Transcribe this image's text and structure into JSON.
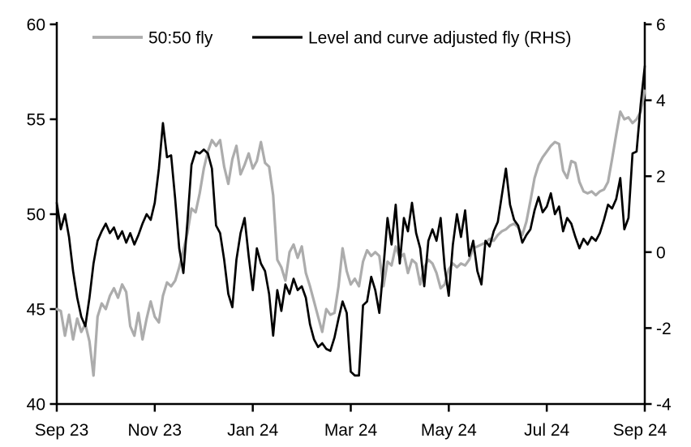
{
  "legend": {
    "items": [
      {
        "label": "50:50 fly",
        "color": "#acacac"
      },
      {
        "label": "Level and curve adjusted fly (RHS)",
        "color": "#000000"
      }
    ]
  },
  "chart_data": {
    "type": "line",
    "x_axis": {
      "tick_labels": [
        "Sep 23",
        "Nov 23",
        "Jan 24",
        "Mar 24",
        "May 24",
        "Jul 24",
        "Sep 24"
      ],
      "note": "daily series from Sep 2023 to Sep 2024, points sampled evenly across the span"
    },
    "left_axis": {
      "range": [
        40,
        60
      ],
      "ticks": [
        60,
        55,
        50,
        45,
        40
      ]
    },
    "right_axis": {
      "range": [
        -4,
        6
      ],
      "ticks": [
        6,
        4,
        2,
        0,
        -2,
        -4
      ]
    },
    "grid": false,
    "legend_position": "top",
    "series": [
      {
        "name": "50:50 fly",
        "axis": "left",
        "color": "#acacac",
        "values": [
          45,
          44.9,
          43.6,
          44.7,
          43.4,
          44.5,
          43.8,
          44.2,
          43.3,
          41.5,
          44.6,
          45.3,
          45,
          45.7,
          46.1,
          45.6,
          46.3,
          45.9,
          44.1,
          43.6,
          44.8,
          43.4,
          44.5,
          45.4,
          44.6,
          44.3,
          45.7,
          46.4,
          46.2,
          46.5,
          47.2,
          48.1,
          49,
          50.3,
          50.1,
          51.1,
          52.4,
          53.3,
          53.9,
          53.6,
          53.9,
          52.5,
          51.6,
          52.9,
          53.6,
          52.1,
          52.6,
          53.2,
          52.4,
          52.8,
          53.8,
          52.7,
          52.5,
          51,
          47.6,
          47.2,
          46.5,
          48,
          48.4,
          47.7,
          48.3,
          46.9,
          46.2,
          45.4,
          44.6,
          43.8,
          45,
          44.7,
          44.8,
          46.2,
          48.2,
          47,
          46.3,
          46.6,
          46.2,
          47.5,
          48.1,
          47.8,
          48,
          47.8,
          46.2,
          47.5,
          47.3,
          48.3,
          47.7,
          47.9,
          46.9,
          47.6,
          47.4,
          46.3,
          47.2,
          47.6,
          47.4,
          46.9,
          46.1,
          46.3,
          47.1,
          47.4,
          47.2,
          47.4,
          47.3,
          47.6,
          48.2,
          48.3,
          48.4,
          48.5,
          48.7,
          48.6,
          48.9,
          49.1,
          49.2,
          49.4,
          49.5,
          49.3,
          48.9,
          49.6,
          50.7,
          51.9,
          52.6,
          53,
          53.3,
          53.6,
          53.8,
          53.7,
          52.3,
          51.9,
          52.8,
          52.7,
          51.7,
          51.2,
          51.1,
          51.2,
          51,
          51.2,
          51.3,
          51.7,
          52.9,
          54.2,
          55.4,
          55,
          55.1,
          54.8,
          55,
          55.4,
          56.5
        ]
      },
      {
        "name": "Level and curve adjusted fly (RHS)",
        "axis": "right",
        "color": "#000000",
        "values": [
          1.3,
          0.6,
          1,
          0.4,
          -0.5,
          -1.2,
          -1.7,
          -1.95,
          -1.2,
          -0.3,
          0.3,
          0.55,
          0.75,
          0.5,
          0.65,
          0.35,
          0.55,
          0.25,
          0.5,
          0.2,
          0.45,
          0.75,
          1,
          0.85,
          1.3,
          2.2,
          3.4,
          2.5,
          2.55,
          1.4,
          0.1,
          -0.55,
          0.8,
          2.3,
          2.65,
          2.6,
          2.7,
          2.6,
          2.2,
          0.7,
          0.5,
          -0.2,
          -1.1,
          -1.45,
          -0.2,
          0.5,
          0.9,
          -0.1,
          -1,
          0.1,
          -0.3,
          -0.5,
          -1.1,
          -2.2,
          -1,
          -1.55,
          -0.85,
          -1.1,
          -0.7,
          -1,
          -0.9,
          -1.2,
          -1.9,
          -2.3,
          -2.5,
          -2.4,
          -2.55,
          -2.6,
          -2.25,
          -1.75,
          -1.3,
          -1.6,
          -3.15,
          -3.25,
          -3.25,
          -1.4,
          -1.3,
          -0.65,
          -1,
          -1.6,
          -0.4,
          0.9,
          0.2,
          1.25,
          -0.3,
          0.9,
          0.55,
          1.3,
          0.5,
          0.1,
          -0.9,
          0.3,
          0.6,
          0.3,
          0.9,
          -0.4,
          -1.15,
          0.2,
          1,
          0.4,
          1.1,
          -0.1,
          0.3,
          -0.5,
          -0.85,
          0.3,
          0.15,
          0.55,
          0.8,
          1.5,
          2.2,
          1.25,
          0.85,
          0.7,
          0.25,
          0.45,
          0.6,
          1.1,
          1.45,
          1.05,
          1.2,
          1.55,
          1,
          1.2,
          0.55,
          0.9,
          0.75,
          0.4,
          0.1,
          0.35,
          0.2,
          0.4,
          0.3,
          0.5,
          0.85,
          1.25,
          1.15,
          1.4,
          1.95,
          0.6,
          0.9,
          2.6,
          2.65,
          3.9,
          4.9
        ]
      }
    ]
  }
}
